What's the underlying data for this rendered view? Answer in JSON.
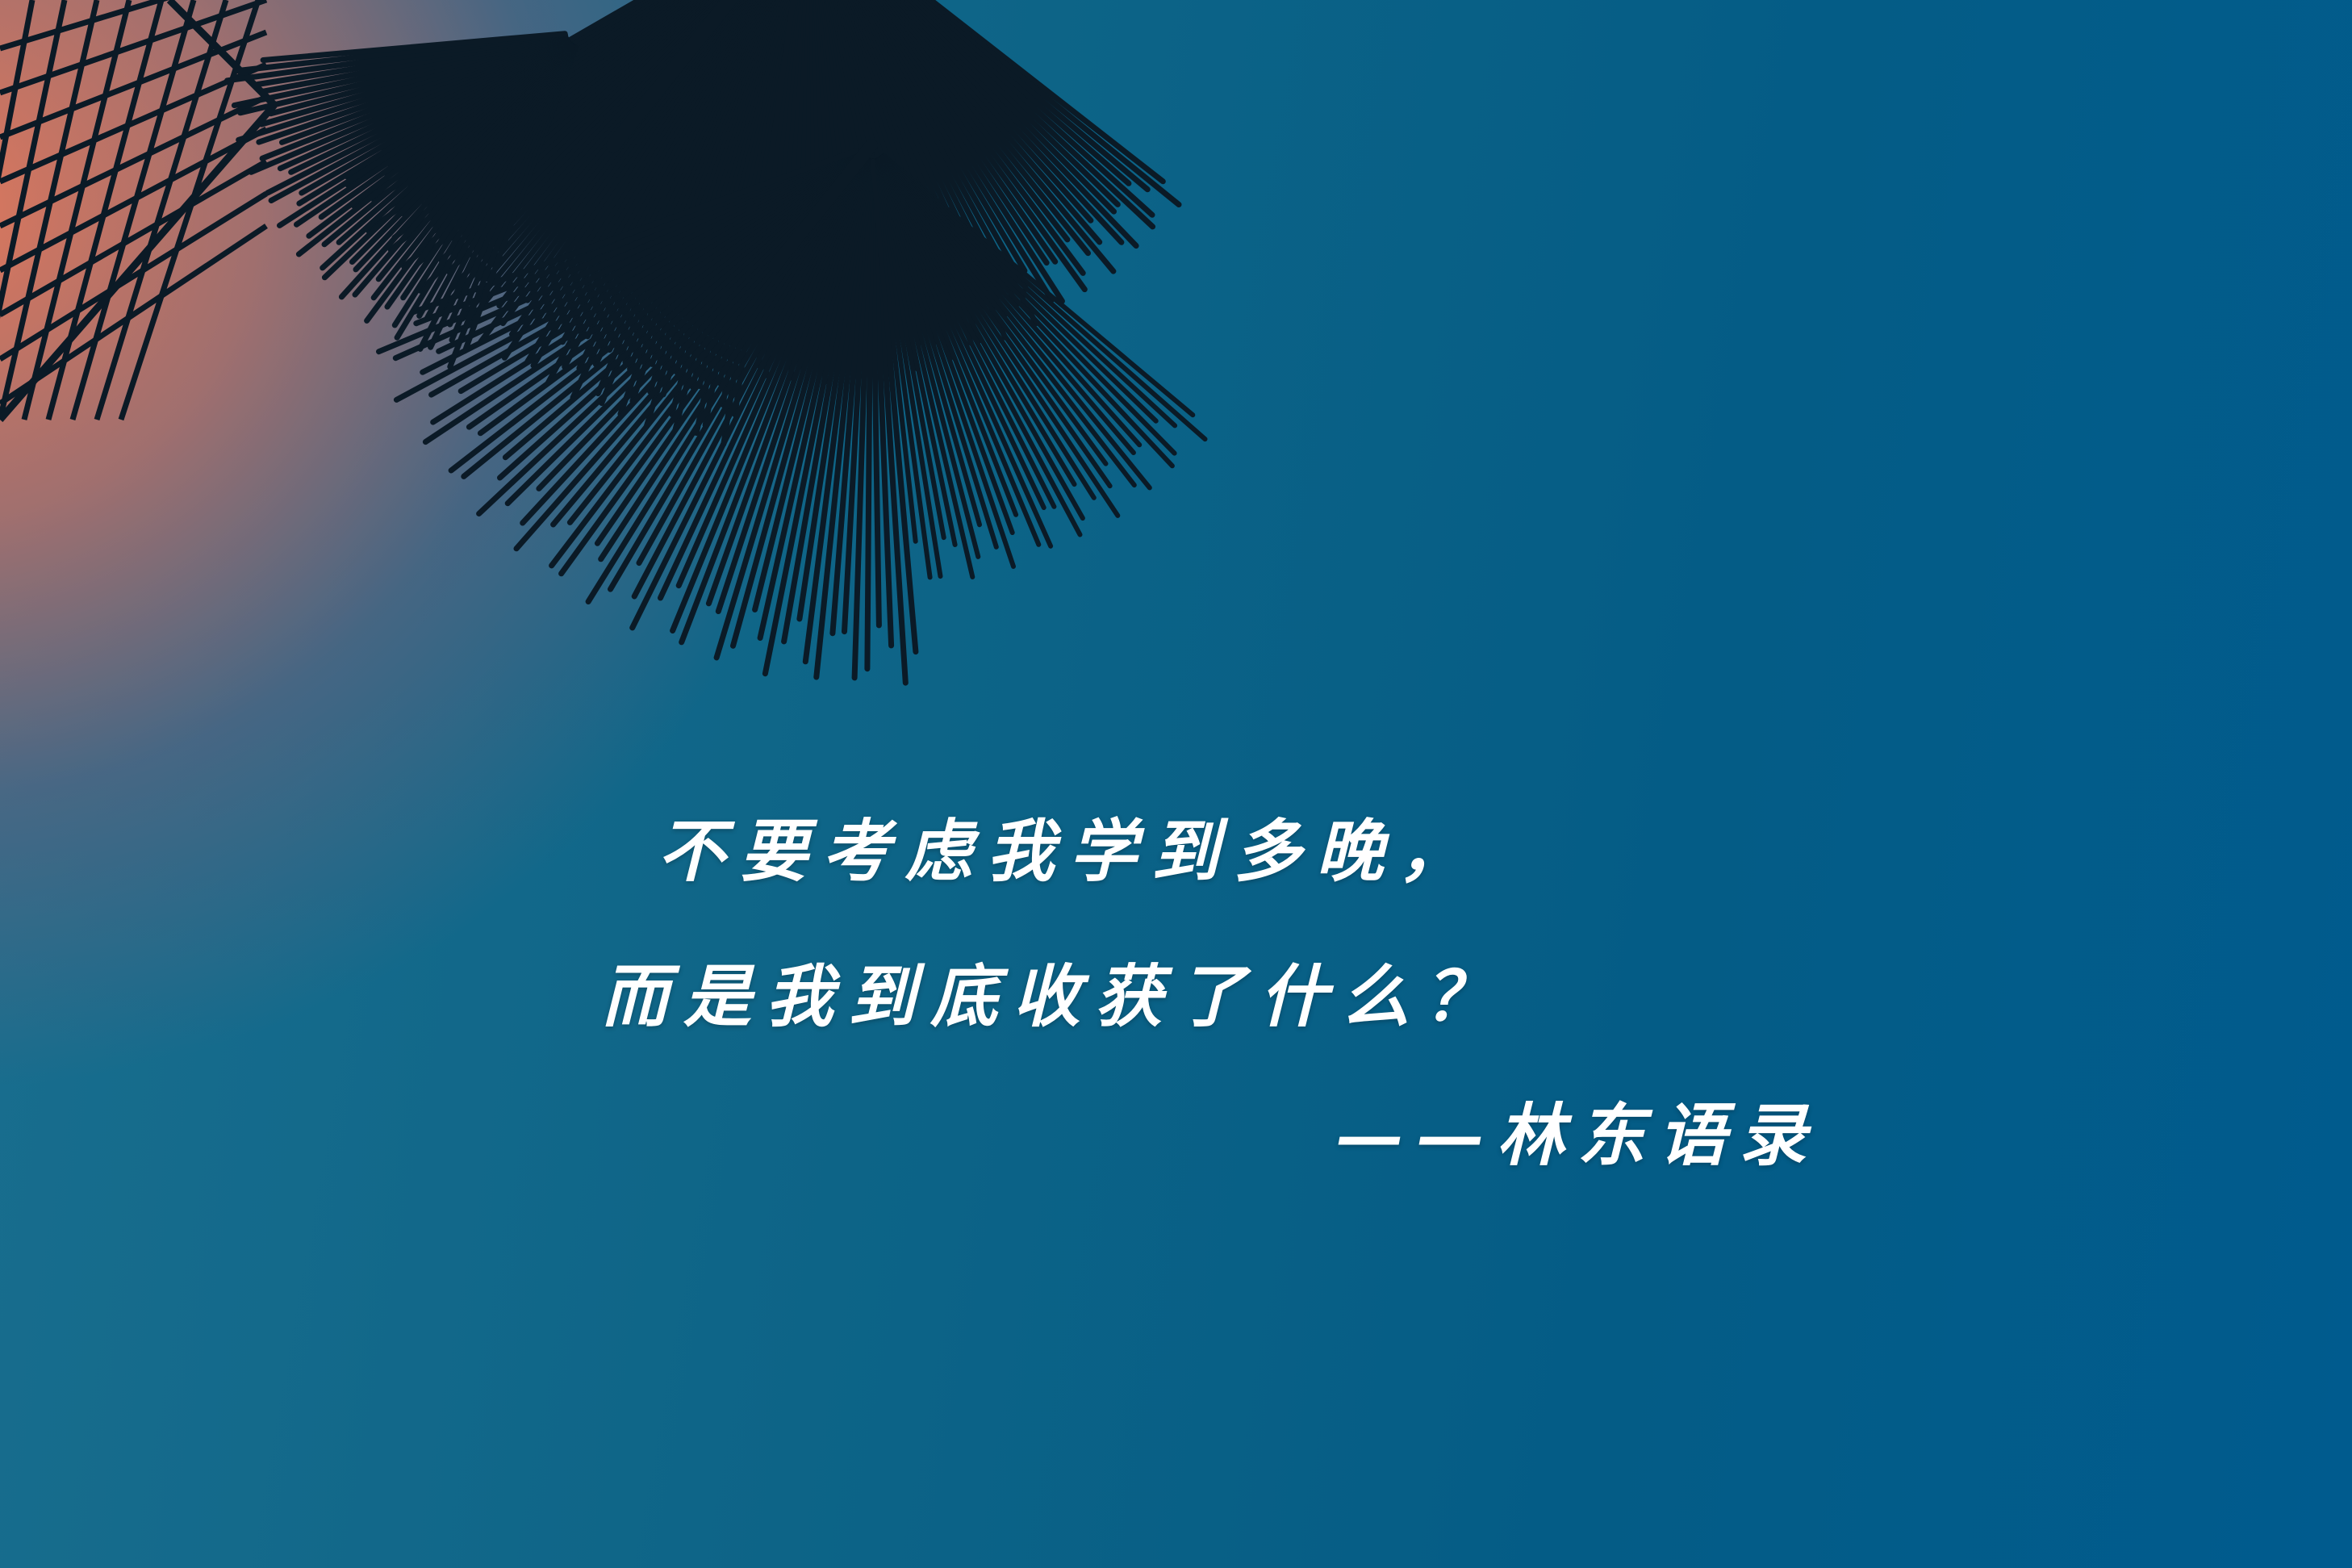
{
  "quote": {
    "line1": "不要考虑我学到多晚，",
    "line2": "而是我到底收获了什么？",
    "attribution": "——林东语录"
  },
  "colors": {
    "text": "#ffffff",
    "sky_warm": "#ec7858",
    "sky_cool": "#005b8e",
    "silhouette": "#0b1a26"
  },
  "decorations": {
    "palm_fronds": "palm-frond-silhouette",
    "lattice": "roof-lattice-silhouette"
  }
}
